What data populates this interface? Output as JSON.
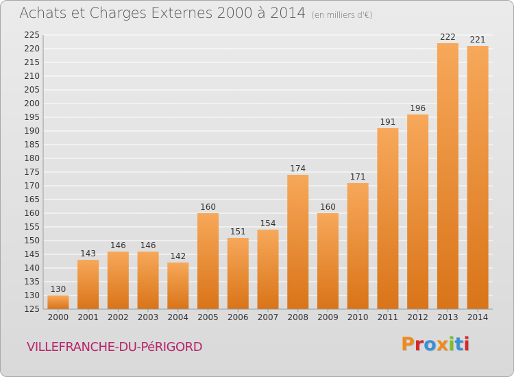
{
  "header": {
    "title": "Achats et Charges Externes 2000 à 2014",
    "subtitle": "(en milliers d'€)"
  },
  "footer": {
    "place": "VILLEFRANCHE-DU-PéRIGORD",
    "brand": "Proxiti",
    "brand_colors": [
      "#f08a1c",
      "#d6272a",
      "#3a8fd6",
      "#f08a1c",
      "#7bbf2a",
      "#3a8fd6",
      "#d6272a"
    ]
  },
  "colors": {
    "bar_top": "#f7a85a",
    "bar_bottom": "#d97418",
    "grid": "#ffffff",
    "axis_text": "#333333",
    "place": "#b5256b"
  },
  "chart_data": {
    "type": "bar",
    "title": "Achats et Charges Externes 2000 à 2014",
    "subtitle": "(en milliers d'€)",
    "categories": [
      "2000",
      "2001",
      "2002",
      "2003",
      "2004",
      "2005",
      "2006",
      "2007",
      "2008",
      "2009",
      "2010",
      "2011",
      "2012",
      "2013",
      "2014"
    ],
    "values": [
      130,
      143,
      146,
      146,
      142,
      160,
      151,
      154,
      174,
      160,
      171,
      191,
      196,
      222,
      221
    ],
    "data_labels": [
      "130",
      "143",
      "146",
      "146",
      "142",
      "160",
      "151",
      "154",
      "174",
      "160",
      "171",
      "191",
      "196",
      "222",
      "221"
    ],
    "ylim": [
      125,
      225
    ],
    "yticks": [
      125,
      130,
      135,
      140,
      145,
      150,
      155,
      160,
      165,
      170,
      175,
      180,
      185,
      190,
      195,
      200,
      205,
      210,
      215,
      220,
      225
    ],
    "ytick_labels": [
      "125",
      "130",
      "135",
      "140",
      "145",
      "150",
      "155",
      "160",
      "165",
      "170",
      "175",
      "180",
      "185",
      "190",
      "195",
      "200",
      "205",
      "210",
      "215",
      "220",
      "225"
    ],
    "grid": true,
    "xlabel": "",
    "ylabel": ""
  }
}
